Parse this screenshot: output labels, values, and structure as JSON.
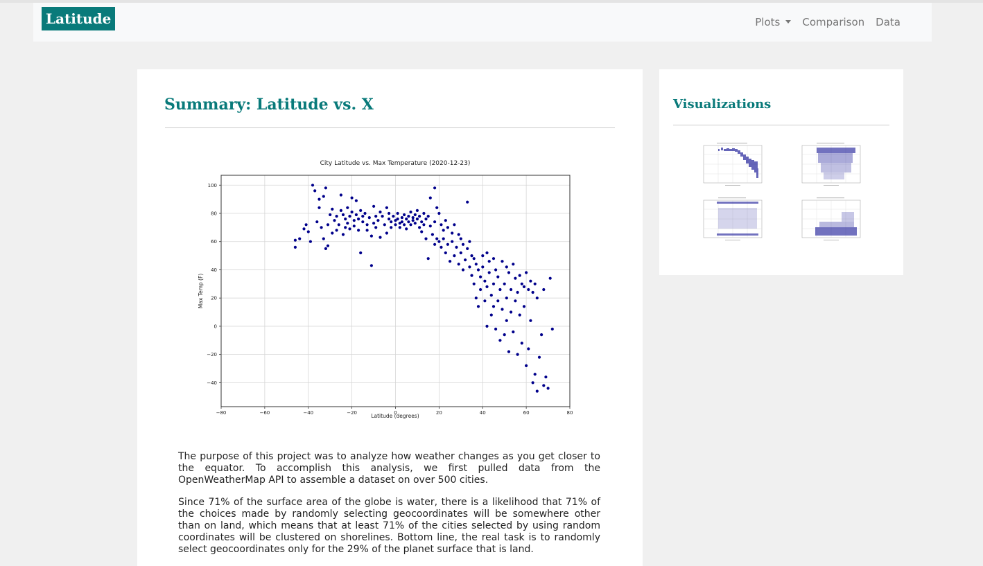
{
  "navbar": {
    "brand": "Latitude",
    "links": [
      "Plots",
      "Comparison",
      "Data"
    ]
  },
  "main": {
    "title": "Summary: Latitude vs. X",
    "paragraphs": [
      "The purpose of this project was to analyze how weather changes as you get closer to the equator. To accomplish this analysis, we first pulled data from the OpenWeatherMap API to assemble a dataset on over 500 cities.",
      "Since 71% of the surface area of the globe is water, there is a likelihood that 71% of the choices made by randomly selecting geocoordinates will be somewhere other than on land, which means that at least 71% of the cities selected by using random coordinates will be clustered on shorelines. Bottom line, the real task is to randomly select geocoordinates only for the 29% of the planet surface that is land."
    ]
  },
  "sidebar": {
    "title": "Visualizations"
  },
  "colors": {
    "accent": "#097a7a",
    "point": "#00008b"
  },
  "chart_data": {
    "type": "scatter",
    "title": "City Latitude vs. Max Temperature (2020-12-23)",
    "xlabel": "Latitude (degrees)",
    "ylabel": "Max Temp (F)",
    "xlim": [
      -80,
      80
    ],
    "ylim": [
      -57,
      107
    ],
    "xticks": [
      -80,
      -60,
      -40,
      -20,
      0,
      20,
      40,
      60,
      80
    ],
    "yticks": [
      -40,
      -20,
      0,
      20,
      40,
      60,
      80,
      100
    ],
    "grid": true,
    "points": [
      [
        -46,
        61
      ],
      [
        -46,
        56
      ],
      [
        -44,
        62
      ],
      [
        -42,
        69
      ],
      [
        -41,
        72
      ],
      [
        -40,
        67
      ],
      [
        -39,
        60
      ],
      [
        -38,
        100
      ],
      [
        -37,
        96
      ],
      [
        -36,
        74
      ],
      [
        -35,
        90
      ],
      [
        -35,
        84
      ],
      [
        -34,
        70
      ],
      [
        -33,
        92
      ],
      [
        -33,
        62
      ],
      [
        -32,
        98
      ],
      [
        -32,
        55
      ],
      [
        -31,
        72
      ],
      [
        -31,
        57
      ],
      [
        -30,
        79
      ],
      [
        -29,
        83
      ],
      [
        -29,
        66
      ],
      [
        -28,
        75
      ],
      [
        -27,
        78
      ],
      [
        -27,
        68
      ],
      [
        -26,
        72
      ],
      [
        -25,
        93
      ],
      [
        -25,
        82
      ],
      [
        -24,
        79
      ],
      [
        -24,
        65
      ],
      [
        -23,
        76
      ],
      [
        -23,
        70
      ],
      [
        -22,
        84
      ],
      [
        -22,
        73
      ],
      [
        -21,
        78
      ],
      [
        -21,
        69
      ],
      [
        -20,
        91
      ],
      [
        -20,
        81
      ],
      [
        -19,
        75
      ],
      [
        -19,
        71
      ],
      [
        -18,
        89
      ],
      [
        -18,
        79
      ],
      [
        -17,
        76
      ],
      [
        -17,
        68
      ],
      [
        -16,
        82
      ],
      [
        -16,
        52
      ],
      [
        -15,
        78
      ],
      [
        -15,
        74
      ],
      [
        -14,
        80
      ],
      [
        -13,
        72
      ],
      [
        -13,
        68
      ],
      [
        -12,
        77
      ],
      [
        -11,
        64
      ],
      [
        -11,
        43
      ],
      [
        -10,
        85
      ],
      [
        -10,
        73
      ],
      [
        -9,
        78
      ],
      [
        -9,
        70
      ],
      [
        -8,
        75
      ],
      [
        -7,
        81
      ],
      [
        -7,
        63
      ],
      [
        -6,
        78
      ],
      [
        -5,
        72
      ],
      [
        -4,
        84
      ],
      [
        -4,
        66
      ],
      [
        -3,
        76
      ],
      [
        -3,
        80
      ],
      [
        -2,
        74
      ],
      [
        -2,
        70
      ],
      [
        -1,
        78
      ],
      [
        0,
        75
      ],
      [
        0,
        72
      ],
      [
        1,
        80
      ],
      [
        1,
        76
      ],
      [
        2,
        73
      ],
      [
        2,
        70
      ],
      [
        3,
        77
      ],
      [
        3,
        74
      ],
      [
        4,
        79
      ],
      [
        4,
        72
      ],
      [
        5,
        76
      ],
      [
        5,
        69
      ],
      [
        6,
        78
      ],
      [
        6,
        74
      ],
      [
        7,
        81
      ],
      [
        7,
        72
      ],
      [
        8,
        77
      ],
      [
        8,
        75
      ],
      [
        9,
        79
      ],
      [
        9,
        73
      ],
      [
        10,
        82
      ],
      [
        10,
        76
      ],
      [
        11,
        70
      ],
      [
        11,
        78
      ],
      [
        12,
        74
      ],
      [
        12,
        67
      ],
      [
        13,
        80
      ],
      [
        13,
        72
      ],
      [
        14,
        76
      ],
      [
        14,
        62
      ],
      [
        15,
        78
      ],
      [
        15,
        48
      ],
      [
        16,
        91
      ],
      [
        16,
        71
      ],
      [
        17,
        65
      ],
      [
        18,
        98
      ],
      [
        18,
        74
      ],
      [
        18,
        58
      ],
      [
        19,
        84
      ],
      [
        19,
        62
      ],
      [
        20,
        80
      ],
      [
        20,
        60
      ],
      [
        21,
        72
      ],
      [
        21,
        56
      ],
      [
        22,
        68
      ],
      [
        22,
        62
      ],
      [
        23,
        75
      ],
      [
        23,
        52
      ],
      [
        24,
        70
      ],
      [
        24,
        58
      ],
      [
        25,
        46
      ],
      [
        26,
        66
      ],
      [
        26,
        60
      ],
      [
        27,
        72
      ],
      [
        27,
        50
      ],
      [
        28,
        56
      ],
      [
        29,
        65
      ],
      [
        29,
        44
      ],
      [
        30,
        62
      ],
      [
        30,
        52
      ],
      [
        31,
        58
      ],
      [
        31,
        40
      ],
      [
        32,
        47
      ],
      [
        33,
        88
      ],
      [
        33,
        55
      ],
      [
        34,
        60
      ],
      [
        34,
        42
      ],
      [
        35,
        50
      ],
      [
        35,
        36
      ],
      [
        36,
        48
      ],
      [
        36,
        30
      ],
      [
        37,
        44
      ],
      [
        37,
        20
      ],
      [
        38,
        40
      ],
      [
        38,
        14
      ],
      [
        39,
        35
      ],
      [
        39,
        26
      ],
      [
        40,
        50
      ],
      [
        40,
        42
      ],
      [
        41,
        32
      ],
      [
        41,
        18
      ],
      [
        42,
        52
      ],
      [
        42,
        28
      ],
      [
        42,
        0
      ],
      [
        43,
        46
      ],
      [
        43,
        38
      ],
      [
        44,
        22
      ],
      [
        44,
        8
      ],
      [
        45,
        48
      ],
      [
        45,
        30
      ],
      [
        45,
        14
      ],
      [
        46,
        40
      ],
      [
        46,
        -2
      ],
      [
        47,
        35
      ],
      [
        47,
        18
      ],
      [
        48,
        -10
      ],
      [
        48,
        26
      ],
      [
        49,
        46
      ],
      [
        49,
        12
      ],
      [
        50,
        30
      ],
      [
        50,
        -6
      ],
      [
        51,
        42
      ],
      [
        51,
        20
      ],
      [
        51,
        4
      ],
      [
        52,
        38
      ],
      [
        52,
        -18
      ],
      [
        53,
        26
      ],
      [
        53,
        10
      ],
      [
        54,
        44
      ],
      [
        54,
        -4
      ],
      [
        55,
        34
      ],
      [
        55,
        18
      ],
      [
        56,
        24
      ],
      [
        56,
        -20
      ],
      [
        57,
        36
      ],
      [
        57,
        8
      ],
      [
        58,
        30
      ],
      [
        58,
        -12
      ],
      [
        59,
        28
      ],
      [
        59,
        14
      ],
      [
        60,
        38
      ],
      [
        60,
        -28
      ],
      [
        61,
        26
      ],
      [
        61,
        -16
      ],
      [
        62,
        32
      ],
      [
        62,
        4
      ],
      [
        63,
        24
      ],
      [
        63,
        -40
      ],
      [
        64,
        30
      ],
      [
        64,
        -34
      ],
      [
        65,
        20
      ],
      [
        65,
        -46
      ],
      [
        66,
        -22
      ],
      [
        67,
        -6
      ],
      [
        68,
        -42
      ],
      [
        68,
        26
      ],
      [
        69,
        -36
      ],
      [
        70,
        -44
      ],
      [
        71,
        34
      ],
      [
        72,
        -2
      ]
    ]
  }
}
